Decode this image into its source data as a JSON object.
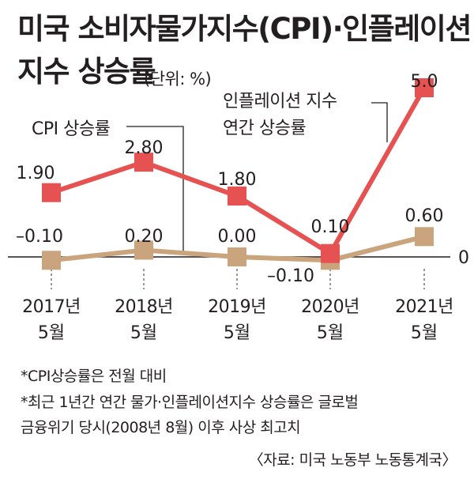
{
  "title_line1": "미국 소비자물가지수(CPI)·인플레이션",
  "title_line2": "지수 상승률",
  "unit_note": "(단위: %)",
  "annotations": {
    "cpi": "CPI 상승률",
    "inflation_line1": "인플레이션 지수",
    "inflation_line2": "연간 상승률"
  },
  "notes": [
    "*CPI상승률은 전월 대비",
    "*최근 1년간 연간 물가·인플레이션지수 상승률은 글로벌",
    "금융위기 당시(2008년 8월) 이후 사상 최고치"
  ],
  "source": "〈자료: 미국 노동부 노동통계국〉",
  "colors": {
    "inflation": "#e65151",
    "cpi": "#c9a47c",
    "text": "#231f20"
  },
  "chart_data": {
    "type": "line",
    "categories": [
      [
        "2017년",
        "5월"
      ],
      [
        "2018년",
        "5월"
      ],
      [
        "2019년",
        "5월"
      ],
      [
        "2020년",
        "5월"
      ],
      [
        "2021년",
        "5월"
      ]
    ],
    "zero_label": "0",
    "series": [
      {
        "key": "inflation",
        "values": [
          1.9,
          2.8,
          1.8,
          0.1,
          5.0
        ],
        "labels": [
          "1.90",
          "2.80",
          "1.80",
          "0.10",
          "5.0"
        ]
      },
      {
        "key": "cpi",
        "values": [
          -0.1,
          0.2,
          0.0,
          -0.1,
          0.6
        ],
        "labels": [
          "–0.10",
          "0.20",
          "0.00",
          "–0.10",
          "0.60"
        ]
      }
    ]
  }
}
